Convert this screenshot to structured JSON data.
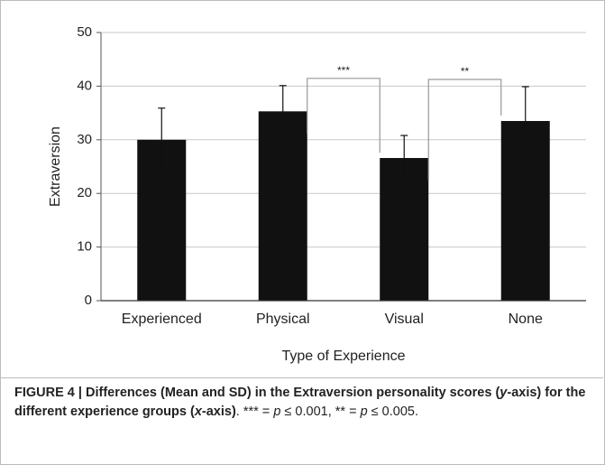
{
  "chart_data": {
    "type": "bar",
    "categories": [
      "Experienced",
      "Physical",
      "Visual",
      "None"
    ],
    "values": [
      30,
      35.3,
      26.6,
      33.5
    ],
    "errors": [
      5.9,
      4.8,
      4.2,
      6.4
    ],
    "color": "#111111",
    "ylabel": "Extraversion",
    "xlabel": "Type of Experience",
    "ylim": [
      0,
      50
    ],
    "yticks": [
      0,
      10,
      20,
      30,
      40,
      50
    ],
    "grid": true,
    "annotations": [
      {
        "text": "***",
        "between": [
          "Physical",
          "Visual"
        ]
      },
      {
        "text": "**",
        "between": [
          "Visual",
          "None"
        ]
      }
    ]
  },
  "caption": [
    {
      "text": "FIGURE 4 | Differences (Mean and SD) in the Extraversion personality scores (",
      "style": "bold"
    },
    {
      "text": "y",
      "style": "bold-italic"
    },
    {
      "text": "-axis) for the different experience groups (",
      "style": "bold"
    },
    {
      "text": "x",
      "style": "bold-italic"
    },
    {
      "text": "-axis)",
      "style": "bold"
    },
    {
      "text": ". *** = ",
      "style": "normal"
    },
    {
      "text": "p",
      "style": "italic"
    },
    {
      "text": " ≤ 0.001, ** = ",
      "style": "normal"
    },
    {
      "text": "p",
      "style": "italic"
    },
    {
      "text": " ≤ 0.005.",
      "style": "normal"
    }
  ]
}
